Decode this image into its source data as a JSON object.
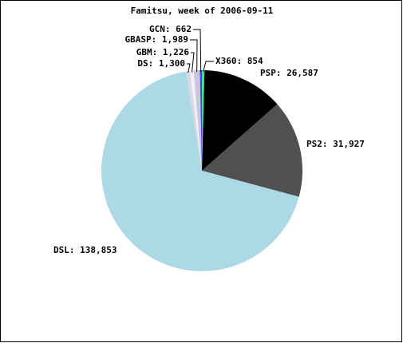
{
  "chart_data": {
    "type": "pie",
    "title": "Famitsu, week of 2006-09-11",
    "values": [
      854,
      26587,
      31927,
      138853,
      1300,
      1226,
      1989,
      662
    ],
    "value_labels": [
      "X360: 854",
      "PSP: 26,587",
      "PS2: 31,927",
      "DSL: 138,853",
      "DS: 1,300",
      "GBM: 1,226",
      "GBASP: 1,989",
      "GCN: 662"
    ],
    "colors": [
      "#33ff33",
      "#000000",
      "#505050",
      "#add8e6",
      "#d8d8e0",
      "#f0f0ff",
      "#c8c8d8",
      "#4040ff"
    ]
  }
}
